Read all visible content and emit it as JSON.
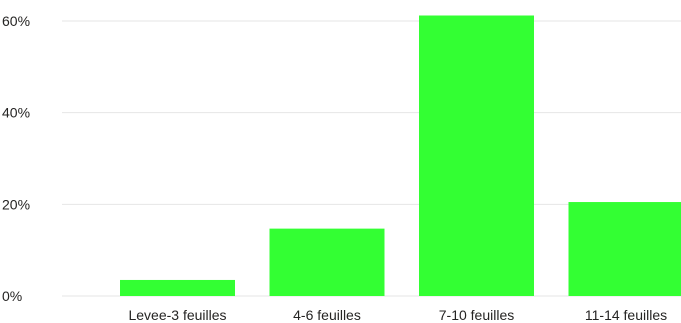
{
  "chart_data": {
    "type": "bar",
    "title": "",
    "xlabel": "",
    "ylabel": "",
    "categories": [
      "Levee-3 feuilles",
      "4-6 feuilles",
      "7-10 feuilles",
      "11-14 feuilles"
    ],
    "values": [
      3.5,
      14.7,
      61.2,
      20.5
    ],
    "ylim": [
      0,
      60
    ],
    "yticks": [
      0,
      20,
      40,
      60
    ],
    "ytick_labels": [
      "0%",
      "20%",
      "40%",
      "60%"
    ],
    "grid": true,
    "legend": "none",
    "bar_color": "#33ff33",
    "grid_color": "#e6e6e6",
    "text_color": "#252423"
  }
}
